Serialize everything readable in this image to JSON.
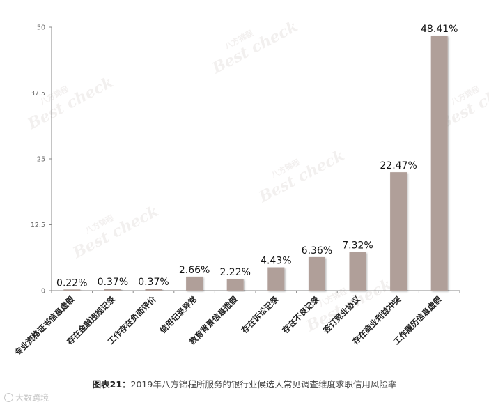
{
  "chart_data": {
    "type": "bar",
    "categories": [
      "专业资格证书信息虚假",
      "存在金融违规记录",
      "工作存在负面评价",
      "信用记录异常",
      "教育背景信息造假",
      "存在诉讼记录",
      "存在不良记录",
      "签订竞业协议",
      "存在商业利益冲突",
      "工作履历信息虚假"
    ],
    "values": [
      0.22,
      0.37,
      0.37,
      2.66,
      2.22,
      4.43,
      6.36,
      7.32,
      22.47,
      48.41
    ],
    "data_labels": [
      "0.22%",
      "0.37%",
      "0.37%",
      "2.66%",
      "2.22%",
      "4.43%",
      "6.36%",
      "7.32%",
      "22.47%",
      "48.41%"
    ],
    "y_ticks": [
      "0",
      "12.5",
      "25",
      "37.5",
      "50"
    ],
    "ylim": [
      0,
      50
    ],
    "bar_color": "#b09f99",
    "grid": false
  },
  "caption": {
    "figure_label": "图表21：",
    "text": "2019年八方锦程所服务的银行业候选人常见调查维度求职信用风险率"
  },
  "watermark": {
    "cn": "八方锦程",
    "en": "Best check"
  },
  "logo": {
    "text": "大数跨境"
  }
}
